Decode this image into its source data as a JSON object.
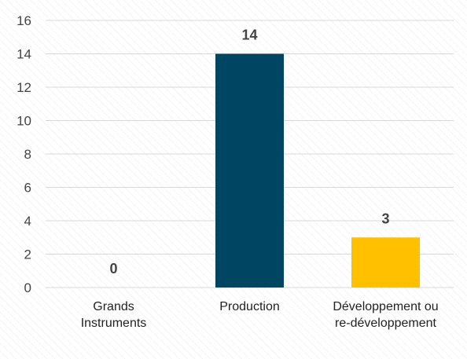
{
  "chart_data": {
    "type": "bar",
    "categories": [
      [
        "Grands",
        "Instruments"
      ],
      [
        "Production"
      ],
      [
        "Développement ou",
        "re-développement"
      ]
    ],
    "values": [
      0,
      14,
      3
    ],
    "data_labels": [
      "0",
      "14",
      "3"
    ],
    "colors": [
      "#1f77b4",
      "#004561",
      "#ffc000"
    ],
    "ylim": [
      0,
      16
    ],
    "yticks": [
      "0",
      "2",
      "4",
      "6",
      "8",
      "10",
      "12",
      "14",
      "16"
    ],
    "grid": true,
    "legend": "none",
    "colors_meta": {
      "grid": "#d8d8d8",
      "text": "#444444"
    }
  }
}
